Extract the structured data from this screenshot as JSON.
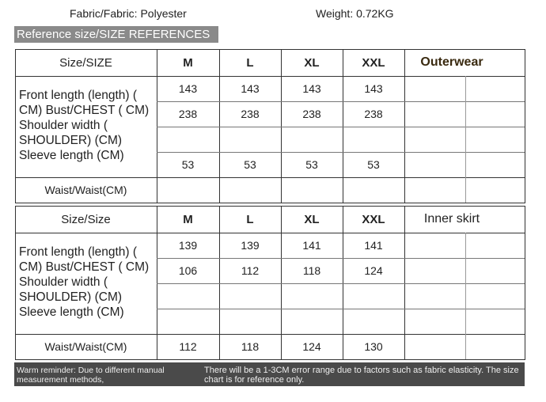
{
  "header": {
    "fabric": "Fabric/Fabric: Polyester",
    "weight": "Weight: 0.72KG",
    "reference": "Reference size/SIZE REFERENCES"
  },
  "tables": [
    {
      "header": [
        "Size/SIZE",
        "M",
        "L",
        "XL",
        "XXL",
        "Outerwear"
      ],
      "label": "Front length (length) ( CM) Bust/CHEST ( CM) Shoulder width ( SHOULDER) (CM) Sleeve length (CM)",
      "rows": [
        [
          143,
          143,
          143,
          143
        ],
        [
          238,
          238,
          238,
          238
        ],
        null,
        [
          53,
          53,
          53,
          53
        ]
      ],
      "waist_label": "Waist/Waist(CM)",
      "waist": null
    },
    {
      "header": [
        "Size/Size",
        "M",
        "L",
        "XL",
        "XXL",
        "Inner skirt"
      ],
      "label": "Front length (length) ( CM) Bust/CHEST ( CM) Shoulder width ( SHOULDER) (CM) Sleeve length (CM)",
      "rows": [
        [
          139,
          139,
          141,
          141
        ],
        [
          106,
          112,
          118,
          124
        ],
        null,
        null
      ],
      "waist_label": "Waist/Waist(CM)",
      "waist": [
        112,
        118,
        124,
        130
      ]
    }
  ],
  "footer": {
    "left": "Warm reminder: Due to different manual measurement methods,",
    "right": "There will be a 1-3CM error range due to factors such as fabric elasticity. The size chart is for reference only."
  }
}
